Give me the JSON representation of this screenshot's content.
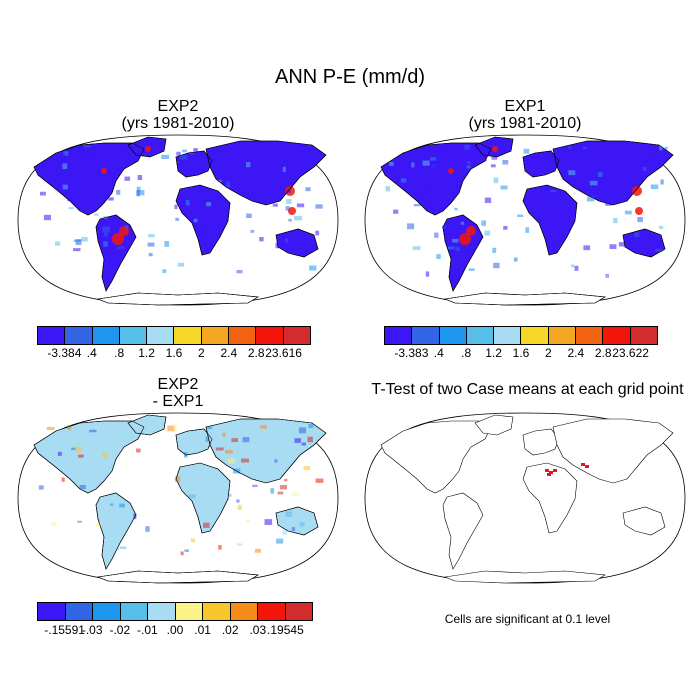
{
  "title": "ANN P-E (mm/d)",
  "panels": {
    "exp2": {
      "title_line1": "EXP2",
      "title_line2": "(yrs 1981-2010)",
      "colorbar": {
        "labels": [
          "-3.384",
          ".4",
          ".8",
          "1.2",
          "1.6",
          "2",
          "2.4",
          "2.8",
          "23.616"
        ]
      }
    },
    "exp1": {
      "title_line1": "EXP1",
      "title_line2": "(yrs 1981-2010)",
      "colorbar": {
        "labels": [
          "-3.383",
          ".4",
          ".8",
          "1.2",
          "1.6",
          "2",
          "2.4",
          "2.8",
          "23.622"
        ]
      }
    },
    "diff": {
      "title_line1": "EXP2",
      "title_line2": "- EXP1",
      "colorbar": {
        "labels": [
          "-.15591",
          "-.03",
          "-.02",
          "-.01",
          ".00",
          ".01",
          ".02",
          ".03",
          ".19545"
        ]
      }
    },
    "ttest": {
      "title": "T-Test of two Case means at each grid point",
      "note": "Cells are significant at 0.1 level"
    }
  },
  "colors": {
    "pe_scale": [
      "#3c16f5",
      "#3264e6",
      "#1e96f0",
      "#55bee9",
      "#a8dcf2",
      "#f7d82a",
      "#f5a623",
      "#f26314",
      "#f2160a",
      "#d22c2c"
    ],
    "diff_scale": [
      "#3c16f5",
      "#3264e6",
      "#1e96f0",
      "#55bee9",
      "#a8dcf2",
      "#fbf38a",
      "#f7c62a",
      "#f58b1a",
      "#f2160a",
      "#d22c2c"
    ],
    "significance": "#e8141e"
  },
  "icons": [
    "world-map-robinson"
  ]
}
